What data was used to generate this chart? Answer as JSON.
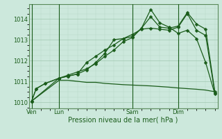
{
  "bg_color": "#cce8dc",
  "grid_color_major": "#a0c8b0",
  "grid_color_minor": "#b8d8c8",
  "line_color": "#1a5c1a",
  "xlabel": "Pression niveau de la mer( hPa )",
  "yticks": [
    1010,
    1011,
    1012,
    1013,
    1014
  ],
  "xtick_labels": [
    "Ven",
    "Lun",
    "Sam",
    "Dim"
  ],
  "xtick_positions": [
    0,
    3,
    11,
    16
  ],
  "xlim": [
    -0.3,
    20.3
  ],
  "ylim": [
    1009.7,
    1014.7
  ],
  "series1_x": [
    0,
    0.5,
    1.5,
    3,
    4,
    5,
    6,
    7,
    8,
    9,
    10,
    11,
    12,
    13,
    14,
    15,
    16,
    17,
    18,
    19,
    20
  ],
  "series1_y": [
    1010.05,
    1010.65,
    1010.9,
    1011.15,
    1011.3,
    1011.45,
    1011.6,
    1011.85,
    1012.2,
    1012.5,
    1012.9,
    1013.1,
    1013.55,
    1014.1,
    1013.6,
    1013.55,
    1013.65,
    1014.3,
    1013.75,
    1013.5,
    1010.5
  ],
  "series2_x": [
    0,
    0.5,
    1.5,
    3,
    4,
    5,
    6,
    7,
    8,
    9,
    10,
    11,
    12,
    13,
    14,
    15,
    16,
    17,
    18,
    19,
    20
  ],
  "series2_y": [
    1010.05,
    1010.65,
    1010.9,
    1011.15,
    1011.25,
    1011.35,
    1011.55,
    1011.9,
    1012.35,
    1013.0,
    1013.05,
    1013.15,
    1013.55,
    1014.45,
    1013.8,
    1013.6,
    1013.3,
    1013.45,
    1013.05,
    1011.9,
    1010.4
  ],
  "series3_x": [
    0,
    3,
    4,
    5,
    6,
    7,
    8,
    9,
    10,
    11,
    12,
    13,
    14,
    15,
    16,
    17,
    18,
    19,
    20
  ],
  "series3_y": [
    1010.05,
    1011.15,
    1011.25,
    1011.35,
    1011.9,
    1012.2,
    1012.5,
    1012.75,
    1013.05,
    1013.25,
    1013.5,
    1013.55,
    1013.5,
    1013.45,
    1013.6,
    1014.25,
    1013.45,
    1013.2,
    1010.45
  ],
  "flat_x": [
    0,
    3,
    4,
    5,
    6,
    7,
    8,
    9,
    10,
    11,
    12,
    13,
    14,
    15,
    16,
    17,
    18,
    19,
    20
  ],
  "flat_y": [
    1010.05,
    1011.05,
    1011.05,
    1011.0,
    1010.95,
    1010.95,
    1010.9,
    1010.87,
    1010.84,
    1010.82,
    1010.8,
    1010.78,
    1010.75,
    1010.72,
    1010.68,
    1010.65,
    1010.62,
    1010.58,
    1010.5
  ],
  "vline_x": [
    0,
    3,
    11,
    16
  ],
  "marker_size": 2.5,
  "lw": 0.9
}
